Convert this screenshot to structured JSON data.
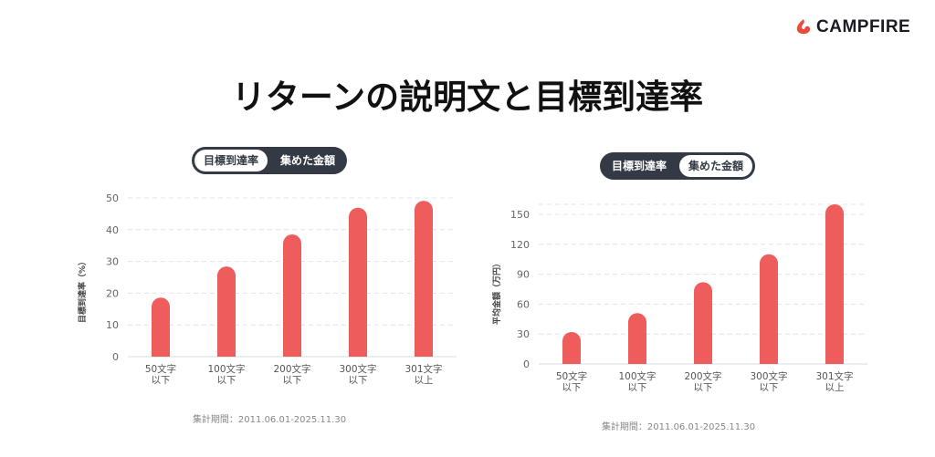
{
  "brand": {
    "name": "CAMPFIRE",
    "color": "#ee4b3a"
  },
  "title": "リターンの説明文と目標到達率",
  "accent_color": "#ee5c5c",
  "charts": [
    {
      "toggle": {
        "options": [
          "目標到達率",
          "集めた金額"
        ],
        "selected": "目標到達率"
      },
      "footnote": "集計期間：2011.06.01-2025.11.30"
    },
    {
      "toggle": {
        "options": [
          "目標到達率",
          "集めた金額"
        ],
        "selected": "集めた金額"
      },
      "footnote": "集計期間：2011.06.01-2025.11.30"
    }
  ],
  "chart_data": [
    {
      "type": "bar",
      "title": "",
      "ylabel": "目標到達率（%）",
      "xlabel": "",
      "categories": [
        [
          "50文字",
          "以下"
        ],
        [
          "100文字",
          "以下"
        ],
        [
          "200文字",
          "以下"
        ],
        [
          "300文字",
          "以下"
        ],
        [
          "301文字",
          "以上"
        ]
      ],
      "values": [
        18.6,
        28.4,
        38.5,
        46.9,
        49.1
      ],
      "ylim": [
        0,
        50
      ],
      "yticks": [
        0,
        10,
        20,
        30,
        40,
        50
      ],
      "grid": true,
      "legend": "none"
    },
    {
      "type": "bar",
      "title": "",
      "ylabel": "平均金額（万円）",
      "xlabel": "",
      "categories": [
        [
          "50文字",
          "以下"
        ],
        [
          "100文字",
          "以下"
        ],
        [
          "200文字",
          "以下"
        ],
        [
          "300文字",
          "以下"
        ],
        [
          "301文字",
          "以上"
        ]
      ],
      "values": [
        32,
        51,
        82,
        110,
        160
      ],
      "ylim": [
        0,
        160
      ],
      "yticks": [
        0,
        30,
        60,
        90,
        120,
        150
      ],
      "grid": true,
      "legend": "none"
    }
  ]
}
